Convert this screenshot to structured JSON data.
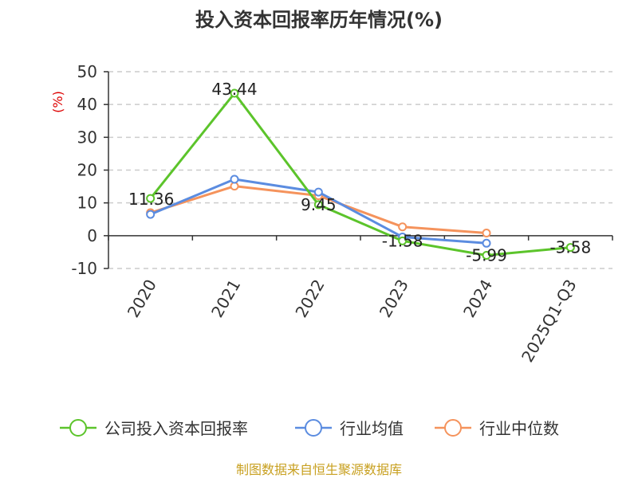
{
  "chart_data": {
    "type": "line",
    "title": "投入资本回报率历年情况(%)",
    "ylabel": "(%)",
    "xlabel": "",
    "categories": [
      "2020",
      "2021",
      "2022",
      "2023",
      "2024",
      "2025Q1-Q3"
    ],
    "ylim": [
      -10,
      50
    ],
    "yticks": [
      50,
      40,
      30,
      20,
      10,
      0,
      -10
    ],
    "grid": true,
    "legend_position": "bottom",
    "series": [
      {
        "name": "公司投入资本回报率",
        "color": "#5cc42b",
        "values": [
          11.36,
          43.44,
          9.45,
          -1.58,
          -5.99,
          -3.58
        ],
        "labels": [
          "11.36",
          "43.44",
          "9.45",
          "-1.58",
          "-5.99",
          "-3.58"
        ]
      },
      {
        "name": "行业均值",
        "color": "#5b8ce0",
        "values": [
          6.5,
          17.2,
          13.3,
          -0.4,
          -2.3,
          null
        ]
      },
      {
        "name": "行业中位数",
        "color": "#f5935c",
        "values": [
          7.0,
          15.1,
          12.2,
          2.7,
          0.8,
          null
        ]
      }
    ],
    "source": "制图数据来自恒生聚源数据库"
  }
}
